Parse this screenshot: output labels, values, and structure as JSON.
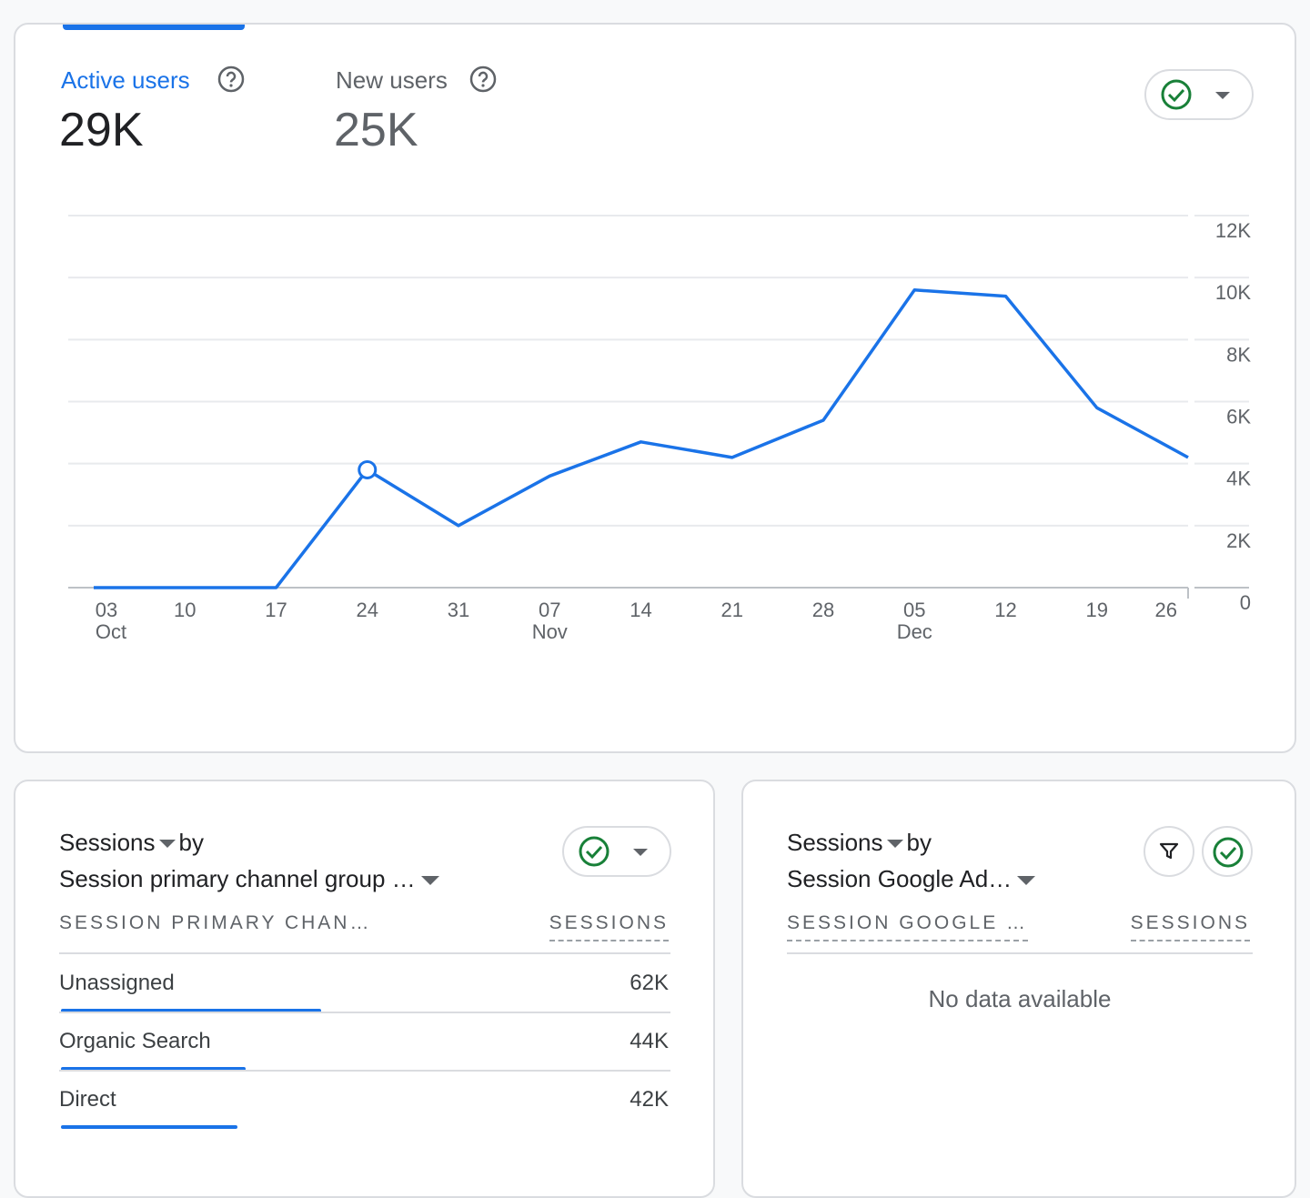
{
  "metrics": [
    {
      "label": "Active users",
      "value": "29K"
    },
    {
      "label": "New users",
      "value": "25K"
    }
  ],
  "chart_data": {
    "type": "line",
    "categories": [
      "03",
      "10",
      "17",
      "24",
      "31",
      "07",
      "14",
      "21",
      "28",
      "05",
      "12",
      "19",
      "26"
    ],
    "month_labels": [
      "Oct",
      null,
      null,
      null,
      null,
      "Nov",
      null,
      null,
      null,
      "Dec",
      null,
      null,
      null
    ],
    "series": [
      {
        "name": "Active users",
        "color": "#1a73e8",
        "values": [
          0,
          0,
          0,
          3800,
          2000,
          3600,
          4700,
          4200,
          5400,
          9600,
          9400,
          5800,
          4200
        ]
      }
    ],
    "marker_index": 3,
    "ylim": [
      0,
      12000
    ],
    "yticks": [
      0,
      {
        "value": 2000,
        "label": "2K"
      },
      {
        "value": 4000,
        "label": "4K"
      },
      {
        "value": 6000,
        "label": "6K"
      },
      {
        "value": 8000,
        "label": "8K"
      },
      {
        "value": 10000,
        "label": "10K"
      },
      {
        "value": 12000,
        "label": "12K"
      }
    ],
    "grid": true
  },
  "channel_card": {
    "metric": "Sessions",
    "by": "by",
    "dimension": "Session primary channel group …",
    "columns": [
      "SESSION PRIMARY CHAN…",
      "SESSIONS"
    ],
    "rows": [
      {
        "name": "Unassigned",
        "value": 62000,
        "value_label": "62K"
      },
      {
        "name": "Organic Search",
        "value": 44000,
        "value_label": "44K"
      },
      {
        "name": "Direct",
        "value": 42000,
        "value_label": "42K"
      }
    ]
  },
  "ads_card": {
    "metric": "Sessions",
    "by": "by",
    "dimension": "Session Google Ad…",
    "columns": [
      "SESSION GOOGLE …",
      "SESSIONS"
    ],
    "empty": "No data available"
  }
}
